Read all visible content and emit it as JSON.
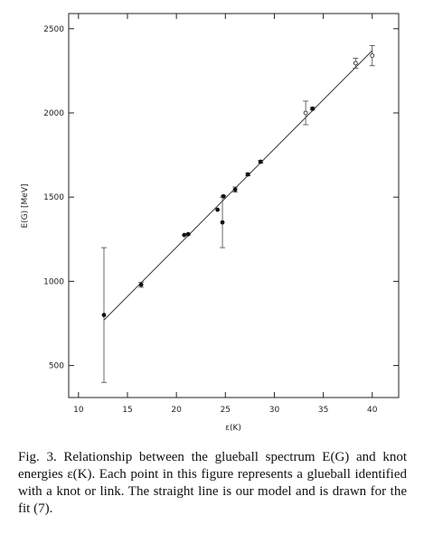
{
  "chart_data": {
    "type": "scatter",
    "x_label": "ε(K)",
    "y_label": "E(G) [MeV]",
    "xlim": [
      9,
      42.7
    ],
    "ylim": [
      310,
      2590
    ],
    "xticks": [
      10,
      15,
      20,
      25,
      30,
      35,
      40
    ],
    "yticks": [
      500,
      1000,
      1500,
      2000,
      2500
    ],
    "filled_points": {
      "x": [
        12.6,
        16.4,
        20.8,
        21.2,
        24.2,
        24.7,
        24.8,
        26.0,
        27.3,
        28.6,
        33.9
      ],
      "values": [
        800,
        980,
        1275,
        1280,
        1425,
        1350,
        1505,
        1545,
        1635,
        1710,
        2025
      ],
      "errors": [
        400,
        15,
        null,
        5,
        null,
        150,
        5,
        15,
        8,
        8,
        8
      ]
    },
    "open_points": {
      "x": [
        33.2,
        38.3,
        40.0
      ],
      "values": [
        2000,
        2295,
        2340
      ],
      "errors": [
        70,
        30,
        60
      ]
    },
    "fit_line": {
      "x": [
        12.6,
        40.0
      ],
      "values": [
        770,
        2370
      ]
    }
  },
  "caption": "Fig. 3. Relationship between the glueball spectrum E(G) and knot energies ε(K). Each point in this figure represents a glueball identified with a knot or link. The straight line is our model and is drawn for the fit (7)."
}
